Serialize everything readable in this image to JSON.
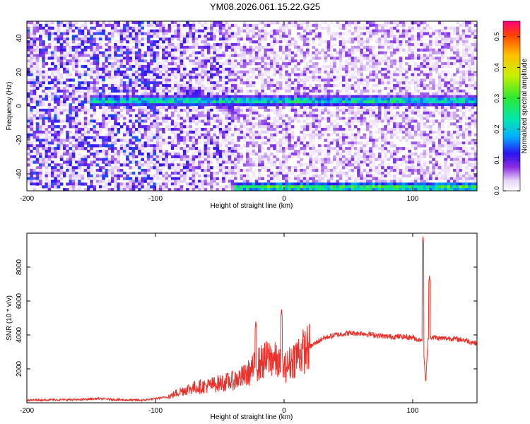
{
  "title": "YM08.2026.061.15.22.G25",
  "chart_data": [
    {
      "type": "heatmap",
      "xlabel": "Height of straight line (km)",
      "ylabel": "Frequency (Hz)",
      "xlim": [
        -200,
        150
      ],
      "ylim": [
        -50,
        50
      ],
      "xticks": [
        -200,
        -100,
        0,
        100
      ],
      "yticks": [
        -40,
        -20,
        0,
        20,
        40
      ],
      "colorbar": {
        "label": "Normalized spectral amplitude",
        "range": [
          0,
          0.55
        ],
        "ticks": [
          "0.0",
          "0.1",
          "0.2",
          "0.3",
          "0.4",
          "0.5"
        ]
      },
      "features": [
        {
          "name": "carrier line",
          "freq_hz": 3,
          "x_range": [
            -150,
            150
          ],
          "amplitude": 0.3
        },
        {
          "name": "curved trace",
          "freq_hz_start": 10,
          "freq_hz_end": -5,
          "x_range": [
            -80,
            -35
          ],
          "amplitude": 0.12
        },
        {
          "name": "lower edge line",
          "freq_hz": -48,
          "x_range": [
            -40,
            150
          ],
          "amplitude": 0.35
        }
      ]
    },
    {
      "type": "line",
      "xlabel": "Height of straight line (km)",
      "ylabel": "SNR (10 * v/v)",
      "xlim": [
        -200,
        150
      ],
      "ylim": [
        0,
        10000
      ],
      "xticks": [
        -200,
        -100,
        0,
        100
      ],
      "yticks": [
        2000,
        4000,
        6000,
        8000
      ],
      "color": "#e8312a",
      "series": [
        {
          "name": "SNR",
          "x": [
            -200,
            -180,
            -160,
            -145,
            -130,
            -110,
            -100,
            -90,
            -80,
            -70,
            -60,
            -50,
            -40,
            -30,
            -20,
            -10,
            0,
            10,
            20,
            30,
            40,
            50,
            60,
            70,
            80,
            90,
            100,
            105,
            108,
            110,
            112,
            115,
            120,
            130,
            140,
            150
          ],
          "y": [
            150,
            180,
            180,
            250,
            180,
            150,
            250,
            350,
            700,
            900,
            1000,
            1150,
            1300,
            1600,
            2300,
            2700,
            2000,
            2800,
            3300,
            3800,
            4000,
            4100,
            4100,
            4000,
            3900,
            3900,
            3850,
            3700,
            3800,
            1200,
            3800,
            3900,
            3800,
            3800,
            3700,
            3500
          ]
        }
      ],
      "spikes": [
        {
          "x": -22,
          "y": 4800
        },
        {
          "x": -2,
          "y": 5500
        },
        {
          "x": 108,
          "y": 9800
        },
        {
          "x": 113,
          "y": 7500
        }
      ]
    }
  ]
}
